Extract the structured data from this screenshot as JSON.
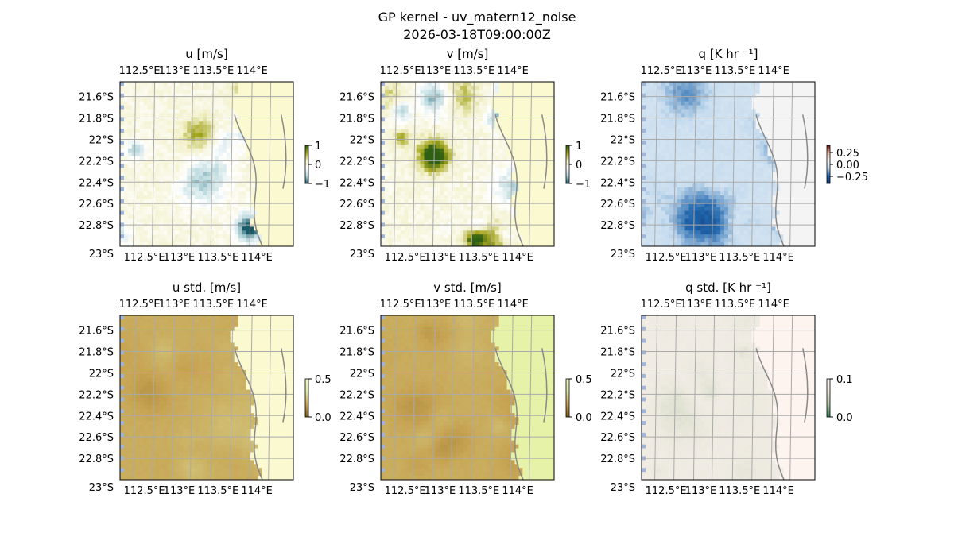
{
  "suptitle": "GP kernel - uv_matern12_noise",
  "timestamp": "2026-03-18T09:00:00Z",
  "colors": {
    "land": "#fbf9cf",
    "ocean_edge": "#9fb4dc",
    "coast": "#888888",
    "grid": "#aaaaaa"
  },
  "chart_data": [
    {
      "type": "heatmap",
      "title": "u [m/s]",
      "colormap": "yellow-green (land) / white / teal",
      "xticks": [
        "112.5°E",
        "113°E",
        "113.5°E",
        "114°E"
      ],
      "yticks": [
        "21.6°S",
        "21.8°S",
        "22°S",
        "22.2°S",
        "22.4°S",
        "22.6°S",
        "22.8°S",
        "23°S"
      ],
      "xlim": [
        112.5,
        114.25
      ],
      "ylim": [
        -23.0,
        -21.5
      ],
      "colorbar": {
        "ticks": [
          "1",
          "0",
          "−1"
        ],
        "range": [
          -1,
          1
        ],
        "colors": [
          "#2f5f12",
          "#a3a51e",
          "#f2f0c8",
          "#ffffff",
          "#b7d7dc",
          "#1a5a6a"
        ]
      },
      "grid": true
    },
    {
      "type": "heatmap",
      "title": "v [m/s]",
      "colormap": "yellow / white / teal",
      "xticks": [
        "112.5°E",
        "113°E",
        "113.5°E",
        "114°E"
      ],
      "yticks": [
        "21.6°S",
        "21.8°S",
        "22°S",
        "22.2°S",
        "22.4°S",
        "22.6°S",
        "22.8°S",
        "23°S"
      ],
      "xlim": [
        112.5,
        114.25
      ],
      "ylim": [
        -23.0,
        -21.5
      ],
      "colorbar": {
        "ticks": [
          "1",
          "0",
          "−1"
        ],
        "range": [
          -1,
          1
        ],
        "colors": [
          "#2f5f12",
          "#a3a51e",
          "#f2f0c8",
          "#ffffff",
          "#b7d7dc",
          "#1a5a6a"
        ]
      },
      "grid": true
    },
    {
      "type": "heatmap",
      "title": "q [K hr ⁻¹]",
      "xticks": [
        "112.5°E",
        "113°E",
        "113.5°E",
        "114°E"
      ],
      "yticks": [
        "21.6°S",
        "21.8°S",
        "22°S",
        "22.2°S",
        "22.4°S",
        "22.6°S",
        "22.8°S",
        "23°S"
      ],
      "xlim": [
        112.5,
        114.25
      ],
      "ylim": [
        -23.0,
        -21.5
      ],
      "colorbar": {
        "ticks": [
          "0.25",
          "0.00",
          "−0.25"
        ],
        "range": [
          -0.4,
          0.4
        ],
        "colors": [
          "#6b0a0a",
          "#e7bba6",
          "#f7f7f7",
          "#c6dcef",
          "#2166ac",
          "#08306b"
        ]
      },
      "grid": true
    },
    {
      "type": "heatmap",
      "title": "u std. [m/s]",
      "xticks": [
        "112.5°E",
        "113°E",
        "113.5°E",
        "114°E"
      ],
      "yticks": [
        "21.6°S",
        "21.8°S",
        "22°S",
        "22.2°S",
        "22.4°S",
        "22.6°S",
        "22.8°S",
        "23°S"
      ],
      "xlim": [
        112.5,
        114.25
      ],
      "ylim": [
        -23.0,
        -21.5
      ],
      "colorbar": {
        "ticks": [
          "0.5",
          "0.0"
        ],
        "range": [
          0,
          0.5
        ],
        "colors": [
          "#f3f7c6",
          "#dfe8a8",
          "#c6a352",
          "#7a5a1a"
        ]
      },
      "grid": true
    },
    {
      "type": "heatmap",
      "title": "v std. [m/s]",
      "xticks": [
        "112.5°E",
        "113°E",
        "113.5°E",
        "114°E"
      ],
      "yticks": [
        "21.6°S",
        "21.8°S",
        "22°S",
        "22.2°S",
        "22.4°S",
        "22.6°S",
        "22.8°S",
        "23°S"
      ],
      "xlim": [
        112.5,
        114.25
      ],
      "ylim": [
        -23.0,
        -21.5
      ],
      "colorbar": {
        "ticks": [
          "0.5",
          "0.0"
        ],
        "range": [
          0,
          0.5
        ],
        "colors": [
          "#f3f7c6",
          "#dfe8a8",
          "#c6a352",
          "#7a5a1a"
        ]
      },
      "grid": true
    },
    {
      "type": "heatmap",
      "title": "q std. [K hr ⁻¹]",
      "xticks": [
        "112.5°E",
        "113°E",
        "113.5°E",
        "114°E"
      ],
      "yticks": [
        "21.6°S",
        "21.8°S",
        "22°S",
        "22.2°S",
        "22.4°S",
        "22.6°S",
        "22.8°S",
        "23°S"
      ],
      "xlim": [
        112.5,
        114.25
      ],
      "ylim": [
        -23.0,
        -21.5
      ],
      "colorbar": {
        "ticks": [
          "0.1",
          "0.0"
        ],
        "range": [
          0,
          0.1
        ],
        "colors": [
          "#fff5f0",
          "#ece9df",
          "#b6c9a8",
          "#2e7d5a"
        ]
      },
      "grid": true
    }
  ]
}
